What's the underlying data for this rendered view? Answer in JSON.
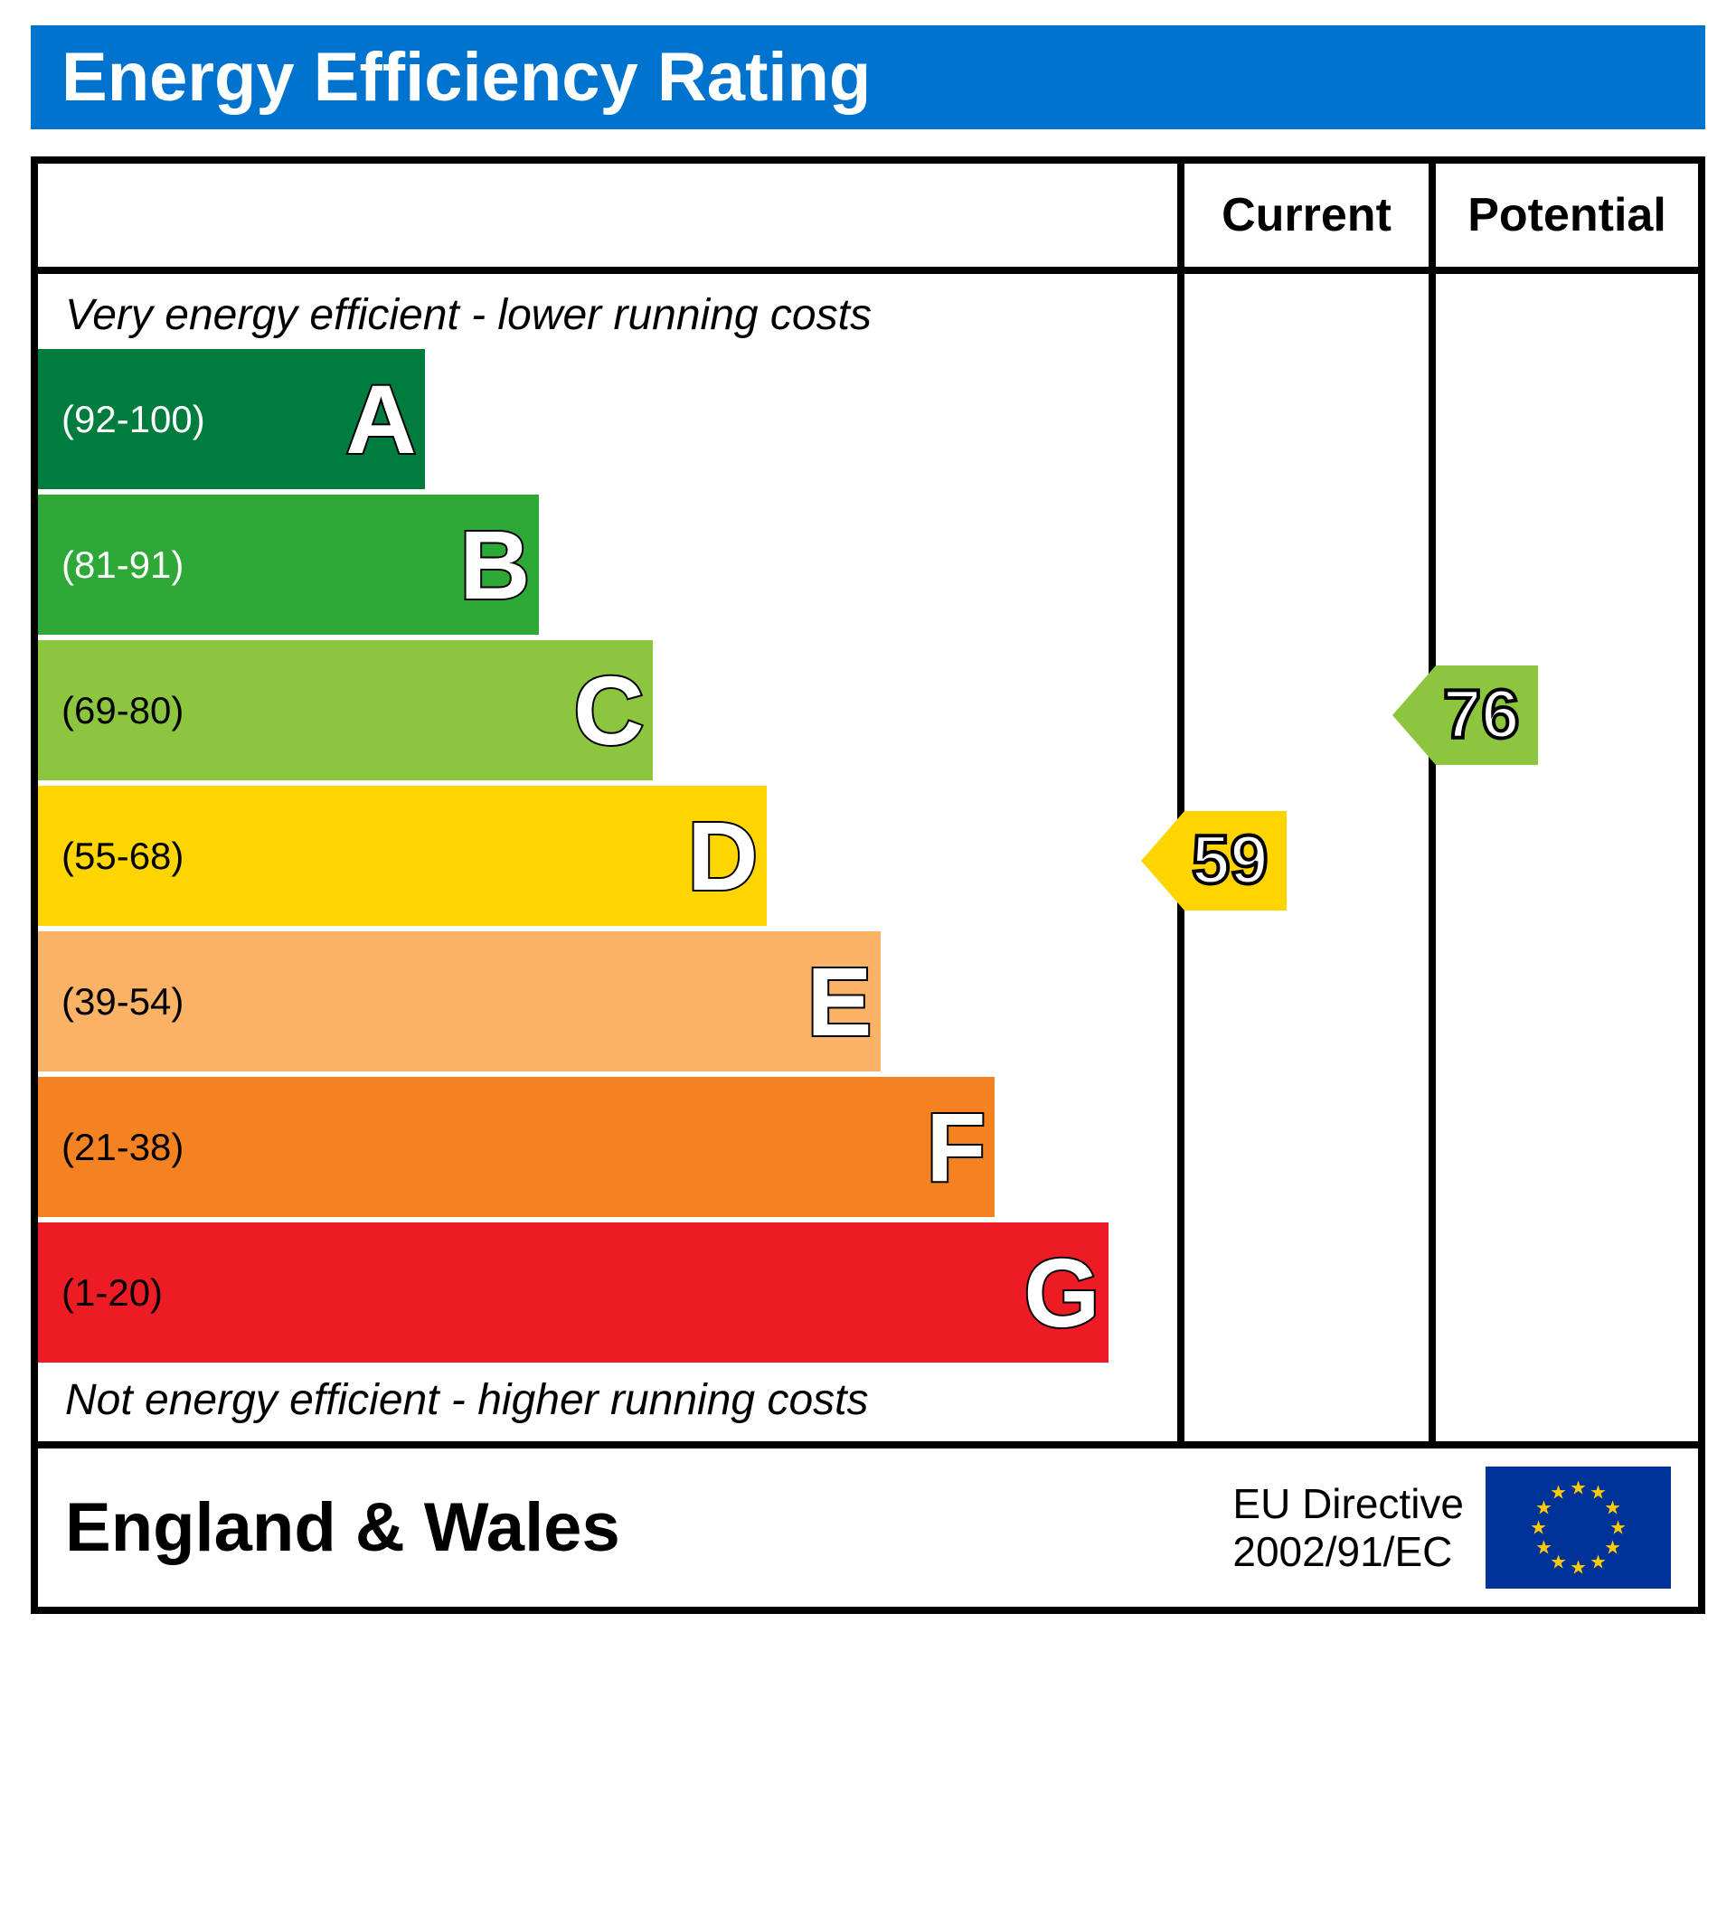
{
  "title": "Energy Efficiency Rating",
  "columns": {
    "current": "Current",
    "potential": "Potential"
  },
  "labels": {
    "top": "Very energy efficient - lower running costs",
    "bottom": "Not energy efficient - higher running costs"
  },
  "bands": [
    {
      "letter": "A",
      "range": "(92-100)",
      "color": "#007d3e",
      "width_pct": 34,
      "range_color": "#ffffff"
    },
    {
      "letter": "B",
      "range": "(81-91)",
      "color": "#2ea836",
      "width_pct": 44,
      "range_color": "#ffffff"
    },
    {
      "letter": "C",
      "range": "(69-80)",
      "color": "#8cc63f",
      "width_pct": 54,
      "range_color": "#000000"
    },
    {
      "letter": "D",
      "range": "(55-68)",
      "color": "#fpec00",
      "width_pct": 64,
      "range_color": "#000000"
    },
    {
      "letter": "E",
      "range": "(39-54)",
      "color": "#f9b266",
      "width_pct": 74,
      "range_color": "#000000"
    },
    {
      "letter": "F",
      "range": "(21-38)",
      "color": "#f58220",
      "width_pct": 84,
      "range_color": "#000000"
    },
    {
      "letter": "G",
      "range": "(1-20)",
      "color": "#ed1c24",
      "width_pct": 94,
      "range_color": "#000000"
    }
  ],
  "band_colors_fix": {
    "D": "#ffd500"
  },
  "ratings": {
    "current": {
      "value": 59,
      "band_index": 3,
      "color": "#ffd500"
    },
    "potential": {
      "value": 76,
      "band_index": 2,
      "color": "#8cc63f"
    }
  },
  "footer": {
    "region": "England & Wales",
    "directive_l1": "EU Directive",
    "directive_l2": "2002/91/EC"
  },
  "layout": {
    "col_current_w": 278,
    "col_potential_w": 298,
    "band_h": 155,
    "band_gap": 6,
    "top_label_h": 70
  },
  "eu_flag": {
    "bg": "#003399",
    "star": "#ffcc00",
    "stars": 12
  }
}
